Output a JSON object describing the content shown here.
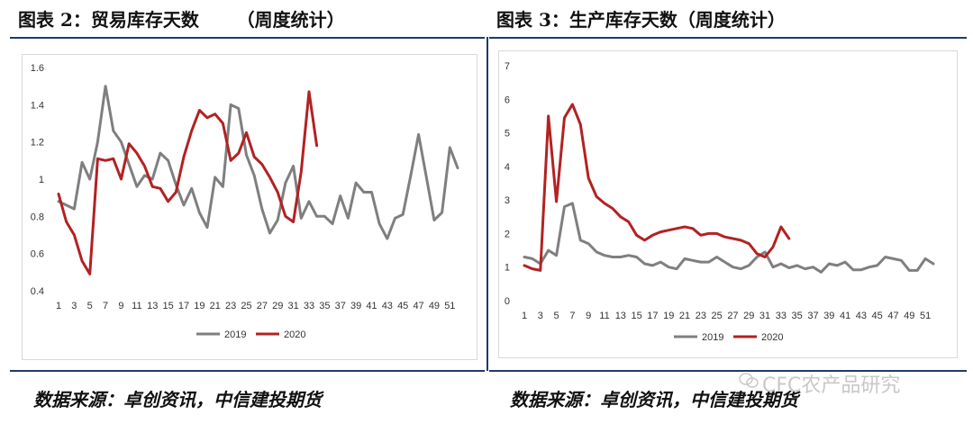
{
  "left_title": "图表 2：贸易库存天数      （周度统计）",
  "right_title": "图表 3：生产库存天数（周度统计）",
  "source_left": "数据来源：卓创资讯，中信建投期货",
  "source_right": "数据来源：卓创资讯，中信建投期货",
  "watermark": "CFC农产品研究",
  "colors": {
    "s2019": "#7f7f7f",
    "s2020": "#b22222",
    "rule": "#1f3a6b"
  },
  "chart_data": [
    {
      "type": "line",
      "title": "",
      "xlabel": "",
      "ylabel": "",
      "ylim": [
        0.4,
        1.6
      ],
      "yticks": [
        "0.4",
        "0.6",
        "0.8",
        "1",
        "1.2",
        "1.4",
        "1.6"
      ],
      "xticks": [
        "1",
        "3",
        "5",
        "7",
        "9",
        "11",
        "13",
        "15",
        "17",
        "19",
        "21",
        "23",
        "25",
        "27",
        "29",
        "31",
        "33",
        "35",
        "37",
        "39",
        "41",
        "43",
        "45",
        "47",
        "49",
        "51"
      ],
      "legend": "bottom",
      "series": [
        {
          "name": "2019",
          "x": [
            1,
            2,
            3,
            4,
            5,
            6,
            7,
            8,
            9,
            10,
            11,
            12,
            13,
            14,
            15,
            16,
            17,
            18,
            19,
            20,
            21,
            22,
            23,
            24,
            25,
            26,
            27,
            28,
            29,
            30,
            31,
            32,
            33,
            34,
            35,
            36,
            37,
            38,
            39,
            40,
            41,
            42,
            43,
            44,
            45,
            46,
            47,
            48,
            49,
            50,
            51,
            52
          ],
          "values": [
            0.88,
            0.86,
            0.84,
            1.09,
            1.0,
            1.2,
            1.5,
            1.26,
            1.2,
            1.08,
            0.96,
            1.02,
            1.0,
            1.14,
            1.1,
            0.97,
            0.86,
            0.95,
            0.82,
            0.74,
            1.01,
            0.96,
            1.4,
            1.38,
            1.13,
            1.02,
            0.84,
            0.71,
            0.78,
            0.98,
            1.07,
            0.79,
            0.88,
            0.8,
            0.8,
            0.76,
            0.91,
            0.79,
            0.98,
            0.93,
            0.93,
            0.76,
            0.68,
            0.79,
            0.81,
            1.02,
            1.24,
            1.01,
            0.78,
            0.82,
            1.17,
            1.06
          ]
        },
        {
          "name": "2020",
          "x": [
            1,
            2,
            3,
            4,
            5,
            6,
            7,
            8,
            9,
            10,
            11,
            12,
            13,
            14,
            15,
            16,
            17,
            18,
            19,
            20,
            21,
            22,
            23,
            24,
            25,
            26,
            27,
            28,
            29,
            30,
            31,
            32,
            33,
            34
          ],
          "values": [
            0.92,
            0.77,
            0.7,
            0.56,
            0.49,
            1.11,
            1.1,
            1.11,
            1.0,
            1.19,
            1.14,
            1.07,
            0.96,
            0.95,
            0.88,
            0.93,
            1.12,
            1.26,
            1.37,
            1.33,
            1.35,
            1.3,
            1.1,
            1.14,
            1.25,
            1.12,
            1.08,
            1.01,
            0.93,
            0.8,
            0.77,
            1.04,
            1.47,
            1.18
          ]
        }
      ]
    },
    {
      "type": "line",
      "title": "",
      "xlabel": "",
      "ylabel": "",
      "ylim": [
        0,
        7
      ],
      "yticks": [
        "0",
        "1",
        "2",
        "3",
        "4",
        "5",
        "6",
        "7"
      ],
      "xticks": [
        "1",
        "3",
        "5",
        "7",
        "9",
        "11",
        "13",
        "15",
        "17",
        "19",
        "21",
        "23",
        "25",
        "27",
        "29",
        "31",
        "33",
        "35",
        "37",
        "39",
        "41",
        "43",
        "45",
        "47",
        "49",
        "51"
      ],
      "legend": "bottom",
      "series": [
        {
          "name": "2019",
          "x": [
            1,
            2,
            3,
            4,
            5,
            6,
            7,
            8,
            9,
            10,
            11,
            12,
            13,
            14,
            15,
            16,
            17,
            18,
            19,
            20,
            21,
            22,
            23,
            24,
            25,
            26,
            27,
            28,
            29,
            30,
            31,
            32,
            33,
            34,
            35,
            36,
            37,
            38,
            39,
            40,
            41,
            42,
            43,
            44,
            45,
            46,
            47,
            48,
            49,
            50,
            51,
            52
          ],
          "values": [
            1.3,
            1.25,
            1.1,
            1.5,
            1.35,
            2.8,
            2.9,
            1.8,
            1.7,
            1.45,
            1.35,
            1.3,
            1.3,
            1.35,
            1.3,
            1.1,
            1.05,
            1.15,
            1.0,
            0.95,
            1.25,
            1.2,
            1.15,
            1.15,
            1.3,
            1.15,
            1.0,
            0.95,
            1.05,
            1.3,
            1.45,
            1.0,
            1.1,
            0.98,
            1.05,
            0.95,
            1.0,
            0.85,
            1.1,
            1.05,
            1.15,
            0.92,
            0.92,
            1.0,
            1.05,
            1.3,
            1.25,
            1.2,
            0.9,
            0.9,
            1.25,
            1.1
          ]
        },
        {
          "name": "2020",
          "x": [
            1,
            2,
            3,
            4,
            5,
            6,
            7,
            8,
            9,
            10,
            11,
            12,
            13,
            14,
            15,
            16,
            17,
            18,
            19,
            20,
            21,
            22,
            23,
            24,
            25,
            26,
            27,
            28,
            29,
            30,
            31,
            32,
            33,
            34
          ],
          "values": [
            1.05,
            0.95,
            0.9,
            5.5,
            2.95,
            5.45,
            5.85,
            5.25,
            3.65,
            3.1,
            2.9,
            2.75,
            2.5,
            2.35,
            1.95,
            1.8,
            1.95,
            2.05,
            2.1,
            2.15,
            2.2,
            2.15,
            1.95,
            2.0,
            2.0,
            1.9,
            1.85,
            1.8,
            1.7,
            1.4,
            1.3,
            1.6,
            2.2,
            1.85
          ]
        }
      ]
    }
  ]
}
